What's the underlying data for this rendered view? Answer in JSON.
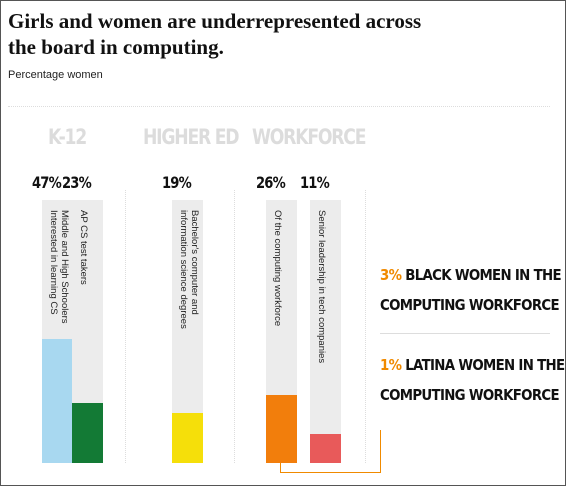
{
  "title": "Girls and women are underrepresented across the board in computing.",
  "subtitle": "Percentage women",
  "groups": [
    {
      "label": "K-12"
    },
    {
      "label": "HIGHER ED"
    },
    {
      "label": "WORKFORCE"
    }
  ],
  "chart_data": {
    "type": "bar",
    "title": "Girls and women are underrepresented across the board in computing.",
    "subtitle": "Percentage women",
    "ylim": [
      0,
      100
    ],
    "bars": [
      {
        "group": "K-12",
        "label": "Middle and High Schoolers Interested in learning CS",
        "value": 47,
        "value_label": "47%",
        "color": "#a8d8f0"
      },
      {
        "group": "K-12",
        "label": "AP CS test takers",
        "value": 23,
        "value_label": "23%",
        "color": "#137a35"
      },
      {
        "group": "HIGHER ED",
        "label": "Bachelor's computer and information science degrees",
        "value": 19,
        "value_label": "19%",
        "color": "#f5df0a"
      },
      {
        "group": "WORKFORCE",
        "label": "Of the computing workforce",
        "value": 26,
        "value_label": "26%",
        "color": "#f27e0c"
      },
      {
        "group": "WORKFORCE",
        "label": "Senior leadership in tech companies",
        "value": 11,
        "value_label": "11%",
        "color": "#e85a5a"
      }
    ]
  },
  "callouts": [
    {
      "pct": "3%",
      "line1": "BLACK WOMEN IN THE",
      "line2": "COMPUTING WORKFORCE"
    },
    {
      "pct": "1%",
      "line1": "LATINA WOMEN IN THE",
      "line2": "COMPUTING WORKFORCE"
    }
  ],
  "accent_color": "#f08a00"
}
